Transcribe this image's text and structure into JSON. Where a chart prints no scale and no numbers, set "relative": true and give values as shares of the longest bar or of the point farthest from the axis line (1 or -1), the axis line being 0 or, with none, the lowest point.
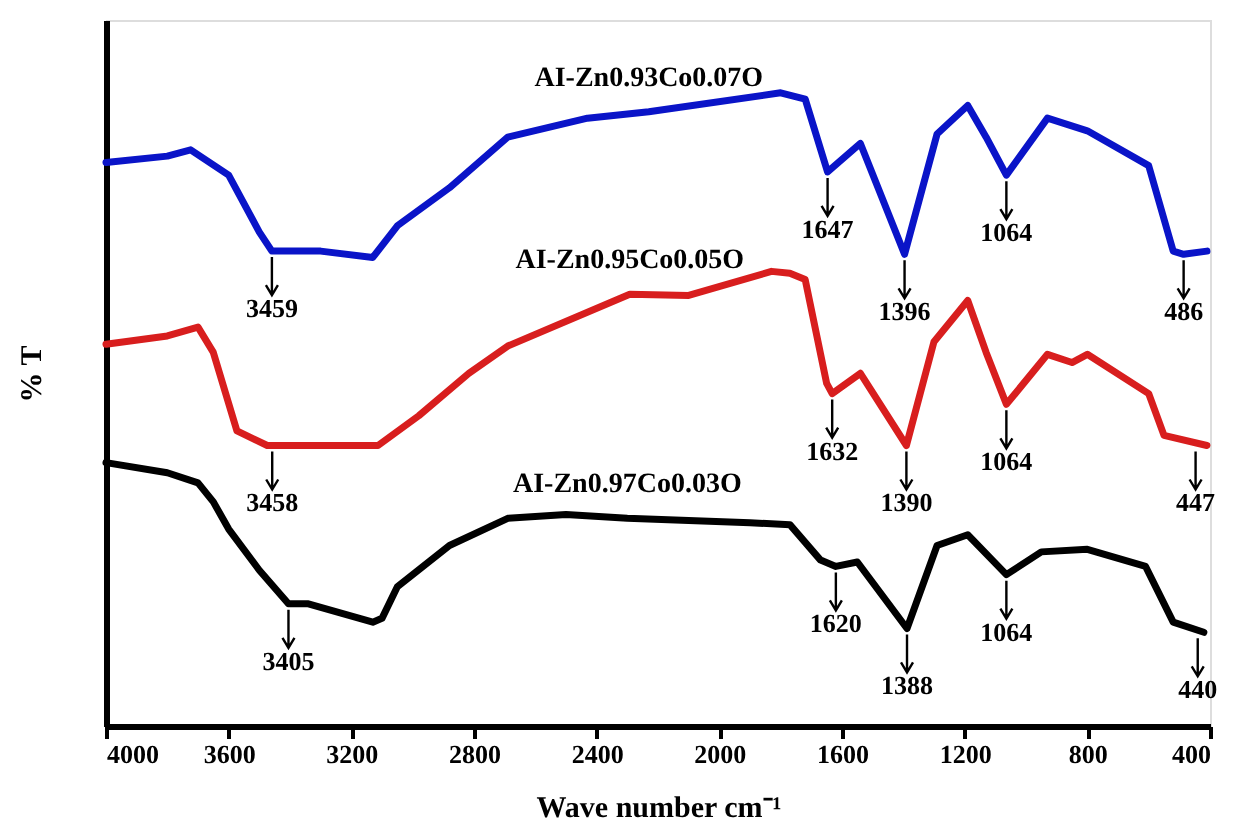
{
  "chart_data": {
    "type": "line",
    "relative": true,
    "xlabel": "Wave number cm⁻¹",
    "ylabel": "% T",
    "xlim": [
      4000,
      400
    ],
    "xticks": [
      4000,
      3600,
      3200,
      2800,
      2400,
      2000,
      1600,
      1200,
      800,
      400
    ],
    "tick_labels": "x",
    "grid": false,
    "legend": false,
    "marker": "none",
    "line_style": "solid",
    "series": [
      {
        "name": "AI-Zn0.93Co0.07O",
        "color": "#0a14c8",
        "x": [
          4000,
          3800,
          3724,
          3600,
          3500,
          3459,
          3300,
          3130,
          3050,
          2880,
          2690,
          2430,
          2230,
          1800,
          1720,
          1647,
          1540,
          1396,
          1290,
          1190,
          1130,
          1064,
          930,
          800,
          600,
          520,
          486,
          410
        ],
        "values": [
          0.89,
          0.9,
          0.91,
          0.87,
          0.78,
          0.75,
          0.75,
          0.74,
          0.79,
          0.85,
          0.93,
          0.96,
          0.97,
          1.0,
          0.99,
          0.875,
          0.92,
          0.745,
          0.935,
          0.98,
          0.93,
          0.87,
          0.96,
          0.94,
          0.885,
          0.75,
          0.745,
          0.75
        ]
      },
      {
        "name": "AI-Zn0.95Co0.05O",
        "color": "#d81e1e",
        "x": [
          4000,
          3800,
          3700,
          3650,
          3573,
          3474,
          3458,
          3113,
          2980,
          2817,
          2690,
          2292,
          2100,
          1830,
          1770,
          1720,
          1650,
          1632,
          1540,
          1390,
          1300,
          1190,
          1130,
          1064,
          930,
          850,
          800,
          600,
          550,
          410
        ],
        "values": [
          0.603,
          0.616,
          0.63,
          0.59,
          0.466,
          0.443,
          0.443,
          0.443,
          0.49,
          0.557,
          0.6,
          0.682,
          0.68,
          0.718,
          0.715,
          0.705,
          0.541,
          0.525,
          0.557,
          0.443,
          0.607,
          0.672,
          0.59,
          0.508,
          0.587,
          0.574,
          0.587,
          0.525,
          0.459,
          0.443
        ]
      },
      {
        "name": "AI-Zn0.97Co0.03O",
        "color": "#000000",
        "x": [
          4000,
          3800,
          3700,
          3650,
          3600,
          3500,
          3405,
          3340,
          3130,
          3100,
          3050,
          2880,
          2690,
          2500,
          2300,
          1900,
          1770,
          1670,
          1620,
          1550,
          1388,
          1290,
          1190,
          1090,
          1064,
          950,
          800,
          610,
          520,
          420
        ],
        "values": [
          0.416,
          0.4,
          0.384,
          0.354,
          0.311,
          0.246,
          0.193,
          0.193,
          0.164,
          0.17,
          0.22,
          0.285,
          0.328,
          0.334,
          0.328,
          0.321,
          0.318,
          0.262,
          0.252,
          0.259,
          0.154,
          0.285,
          0.302,
          0.252,
          0.239,
          0.275,
          0.279,
          0.252,
          0.164,
          0.148
        ]
      }
    ],
    "annotations": [
      {
        "text": "3459",
        "x": 3459,
        "y": 0.75
      },
      {
        "text": "1647",
        "x": 1647,
        "y": 0.875
      },
      {
        "text": "1396",
        "x": 1396,
        "y": 0.745
      },
      {
        "text": "1064",
        "x": 1064,
        "y": 0.87
      },
      {
        "text": "486",
        "x": 486,
        "y": 0.745
      },
      {
        "text": "3458",
        "x": 3458,
        "y": 0.443
      },
      {
        "text": "1632",
        "x": 1632,
        "y": 0.525
      },
      {
        "text": "1390",
        "x": 1390,
        "y": 0.443
      },
      {
        "text": "1064",
        "x": 1064,
        "y": 0.508
      },
      {
        "text": "447",
        "x": 447,
        "y": 0.443
      },
      {
        "text": "3405",
        "x": 3405,
        "y": 0.193
      },
      {
        "text": "1620",
        "x": 1620,
        "y": 0.252
      },
      {
        "text": "1388",
        "x": 1388,
        "y": 0.154
      },
      {
        "text": "1064",
        "x": 1064,
        "y": 0.239
      },
      {
        "text": "440",
        "x": 440,
        "y": 0.148
      }
    ]
  }
}
